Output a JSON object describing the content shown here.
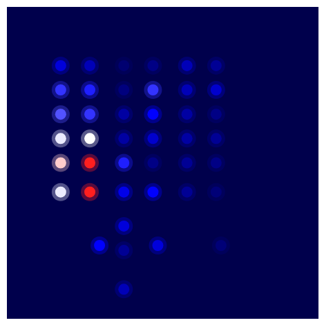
{
  "chart_data": {
    "type": "heatmap",
    "xlim": [
      0,
      64
    ],
    "ylim": [
      64,
      0
    ],
    "tick_labels": false,
    "color_range": [
      0,
      1
    ],
    "cells": [
      {
        "x": 11,
        "y": 12,
        "value": 0.2
      },
      {
        "x": 11,
        "y": 17,
        "value": 0.3
      },
      {
        "x": 11,
        "y": 22,
        "value": 0.33
      },
      {
        "x": 11,
        "y": 27,
        "value": 0.48
      },
      {
        "x": 11,
        "y": 32,
        "value": 0.55
      },
      {
        "x": 11,
        "y": 38,
        "value": 0.48
      },
      {
        "x": 17,
        "y": 12,
        "value": 0.15
      },
      {
        "x": 17,
        "y": 17,
        "value": 0.28
      },
      {
        "x": 17,
        "y": 22,
        "value": 0.3
      },
      {
        "x": 17,
        "y": 27,
        "value": 0.5
      },
      {
        "x": 17,
        "y": 32,
        "value": 0.72
      },
      {
        "x": 17,
        "y": 38,
        "value": 0.72
      },
      {
        "x": 19,
        "y": 49,
        "value": 0.25
      },
      {
        "x": 24,
        "y": 12,
        "value": 0.05
      },
      {
        "x": 24,
        "y": 17,
        "value": 0.07
      },
      {
        "x": 24,
        "y": 22,
        "value": 0.12
      },
      {
        "x": 24,
        "y": 27,
        "value": 0.12
      },
      {
        "x": 24,
        "y": 32,
        "value": 0.28
      },
      {
        "x": 24,
        "y": 38,
        "value": 0.22
      },
      {
        "x": 24,
        "y": 45,
        "value": 0.2
      },
      {
        "x": 24,
        "y": 50,
        "value": 0.1
      },
      {
        "x": 24,
        "y": 58,
        "value": 0.15
      },
      {
        "x": 30,
        "y": 12,
        "value": 0.08
      },
      {
        "x": 30,
        "y": 17,
        "value": 0.3
      },
      {
        "x": 30,
        "y": 22,
        "value": 0.25
      },
      {
        "x": 30,
        "y": 27,
        "value": 0.18
      },
      {
        "x": 30,
        "y": 32,
        "value": 0.08
      },
      {
        "x": 30,
        "y": 38,
        "value": 0.25
      },
      {
        "x": 31,
        "y": 49,
        "value": 0.2
      },
      {
        "x": 37,
        "y": 12,
        "value": 0.15
      },
      {
        "x": 37,
        "y": 17,
        "value": 0.15
      },
      {
        "x": 37,
        "y": 22,
        "value": 0.12
      },
      {
        "x": 37,
        "y": 27,
        "value": 0.12
      },
      {
        "x": 37,
        "y": 32,
        "value": 0.1
      },
      {
        "x": 37,
        "y": 38,
        "value": 0.1
      },
      {
        "x": 43,
        "y": 12,
        "value": 0.1
      },
      {
        "x": 43,
        "y": 17,
        "value": 0.18
      },
      {
        "x": 43,
        "y": 22,
        "value": 0.08
      },
      {
        "x": 43,
        "y": 27,
        "value": 0.1
      },
      {
        "x": 43,
        "y": 32,
        "value": 0.08
      },
      {
        "x": 43,
        "y": 38,
        "value": 0.06
      },
      {
        "x": 44,
        "y": 49,
        "value": 0.06
      }
    ]
  }
}
